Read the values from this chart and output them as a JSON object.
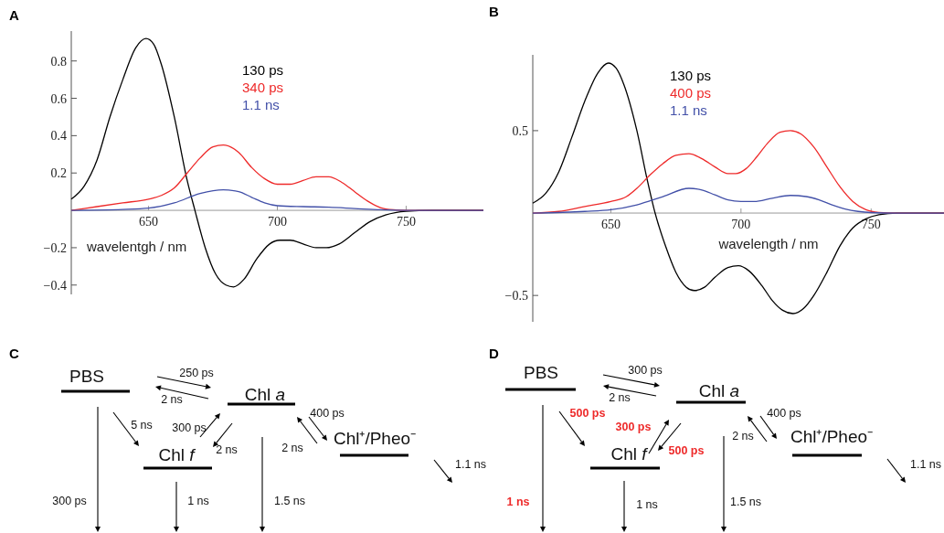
{
  "chart_data": [
    {
      "type": "line",
      "title": "A",
      "xlabel": "wavelentgh / nm",
      "xlim": [
        620,
        780
      ],
      "ylim": [
        -0.45,
        0.96
      ],
      "xticks": [
        650,
        700,
        750
      ],
      "yticks": [
        {
          "value": -0.4,
          "label": "−0.4"
        },
        {
          "value": -0.2,
          "label": "−0.2"
        },
        0.2,
        0.4,
        0.6,
        0.8
      ],
      "legend": "top",
      "series": [
        {
          "name": "130 ps",
          "color": "#000000",
          "x": [
            620,
            625,
            630,
            635,
            640,
            645,
            649,
            652,
            655,
            660,
            665,
            668,
            672,
            676,
            680,
            683,
            687,
            692,
            697,
            701,
            705,
            710,
            715,
            719,
            724,
            730,
            736,
            742,
            750,
            760,
            780
          ],
          "values": [
            0.06,
            0.13,
            0.27,
            0.5,
            0.7,
            0.87,
            0.92,
            0.89,
            0.78,
            0.5,
            0.16,
            0,
            -0.2,
            -0.34,
            -0.4,
            -0.41,
            -0.37,
            -0.26,
            -0.18,
            -0.16,
            -0.16,
            -0.18,
            -0.2,
            -0.2,
            -0.18,
            -0.12,
            -0.06,
            -0.025,
            -0.005,
            0,
            0
          ]
        },
        {
          "name": "340 ps",
          "color": "#ee2a2a",
          "x": [
            620,
            630,
            640,
            650,
            655,
            660,
            665,
            670,
            675,
            679,
            685,
            690,
            695,
            700,
            705,
            710,
            715,
            720,
            725,
            730,
            735,
            740,
            745,
            750,
            780
          ],
          "values": [
            0,
            0.02,
            0.04,
            0.06,
            0.08,
            0.12,
            0.2,
            0.28,
            0.34,
            0.35,
            0.31,
            0.23,
            0.17,
            0.14,
            0.14,
            0.16,
            0.18,
            0.18,
            0.15,
            0.1,
            0.05,
            0.015,
            0.003,
            0,
            0
          ]
        },
        {
          "name": "1.1 ns",
          "color": "#4250a8",
          "x": [
            620,
            640,
            650,
            660,
            670,
            679,
            685,
            690,
            695,
            700,
            710,
            720,
            730,
            740,
            750,
            780
          ],
          "values": [
            0,
            0.005,
            0.012,
            0.04,
            0.09,
            0.11,
            0.1,
            0.07,
            0.04,
            0.025,
            0.02,
            0.017,
            0.01,
            0.003,
            0,
            0
          ]
        }
      ]
    },
    {
      "type": "line",
      "title": "B",
      "xlabel": "wavelength / nm",
      "xlim": [
        620,
        778
      ],
      "ylim": [
        -0.66,
        0.96
      ],
      "xticks": [
        650,
        700,
        750
      ],
      "yticks": [
        {
          "value": -0.5,
          "label": "−0.5"
        },
        0.5
      ],
      "legend": "top",
      "series": [
        {
          "name": "130 ps",
          "color": "#000000",
          "x": [
            620,
            625,
            630,
            635,
            640,
            645,
            649,
            652,
            655,
            660,
            664,
            667,
            671,
            675,
            679,
            682,
            686,
            690,
            695,
            699,
            703,
            708,
            712,
            716,
            720,
            724,
            728,
            733,
            738,
            743,
            748,
            753,
            760,
            778
          ],
          "values": [
            0.06,
            0.12,
            0.25,
            0.46,
            0.68,
            0.85,
            0.91,
            0.88,
            0.78,
            0.5,
            0.2,
            0,
            -0.2,
            -0.36,
            -0.45,
            -0.47,
            -0.45,
            -0.39,
            -0.33,
            -0.32,
            -0.35,
            -0.44,
            -0.53,
            -0.59,
            -0.61,
            -0.58,
            -0.5,
            -0.36,
            -0.2,
            -0.09,
            -0.035,
            -0.01,
            0,
            0
          ]
        },
        {
          "name": "400 ps",
          "color": "#ee2a2a",
          "x": [
            620,
            630,
            640,
            650,
            656,
            660,
            665,
            670,
            675,
            680,
            685,
            690,
            695,
            698,
            702,
            706,
            710,
            715,
            719,
            723,
            728,
            733,
            738,
            743,
            748,
            753,
            760,
            778
          ],
          "values": [
            0,
            0.01,
            0.04,
            0.07,
            0.1,
            0.15,
            0.23,
            0.3,
            0.35,
            0.36,
            0.33,
            0.28,
            0.24,
            0.24,
            0.27,
            0.34,
            0.42,
            0.49,
            0.5,
            0.48,
            0.4,
            0.28,
            0.16,
            0.07,
            0.02,
            0.004,
            0,
            0
          ]
        },
        {
          "name": "1.1 ns",
          "color": "#4250a8",
          "x": [
            620,
            640,
            650,
            660,
            670,
            680,
            685,
            690,
            695,
            700,
            705,
            712,
            719,
            725,
            730,
            735,
            740,
            745,
            750,
            760,
            778
          ],
          "values": [
            0,
            0.01,
            0.02,
            0.05,
            0.1,
            0.15,
            0.14,
            0.11,
            0.08,
            0.07,
            0.07,
            0.09,
            0.107,
            0.1,
            0.08,
            0.05,
            0.025,
            0.01,
            0.003,
            0,
            0
          ]
        }
      ]
    },
    {
      "type": "other",
      "title": "C",
      "annotations": [
        "PBS",
        "Chl a",
        "Chl f",
        "Chl⁺/Pheo⁻",
        "250 ps",
        "2 ns",
        "5 ns",
        "300 ps",
        "2 ns",
        "400 ps",
        "2 ns",
        "1.1 ns",
        "300 ps",
        "1 ns",
        "1.5 ns"
      ]
    },
    {
      "type": "other",
      "title": "D",
      "annotations": [
        "PBS",
        "Chl a",
        "Chl f",
        "Chl⁺/Pheo⁻",
        "300 ps",
        "2 ns",
        "500 ps",
        "300 ps",
        "500 ps",
        "400 ps",
        "2 ns",
        "1.1 ns",
        "1 ns",
        "1 ns",
        "1.5 ns"
      ]
    }
  ]
}
